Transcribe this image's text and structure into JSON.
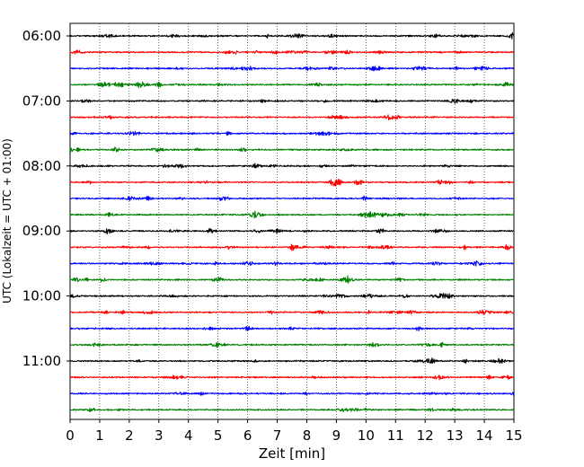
{
  "chart_data": {
    "type": "line",
    "title": "",
    "xlabel": "Zeit  [min]",
    "ylabel": "UTC (Lokalzeit = UTC + 01:00)",
    "xlim": [
      0,
      15
    ],
    "x_ticks": [
      0,
      1,
      2,
      3,
      4,
      5,
      6,
      7,
      8,
      9,
      10,
      11,
      12,
      13,
      14,
      15
    ],
    "y_tick_labels": [
      "06:00",
      "07:00",
      "08:00",
      "09:00",
      "10:00",
      "11:00"
    ],
    "trace_interval_minutes": 15,
    "start_time": "06:00",
    "trace_count": 24,
    "trace_colors": [
      "#000000",
      "#ff0000",
      "#0000ff",
      "#008000"
    ],
    "grid": "vertical dotted at each minute",
    "legend": "none"
  }
}
